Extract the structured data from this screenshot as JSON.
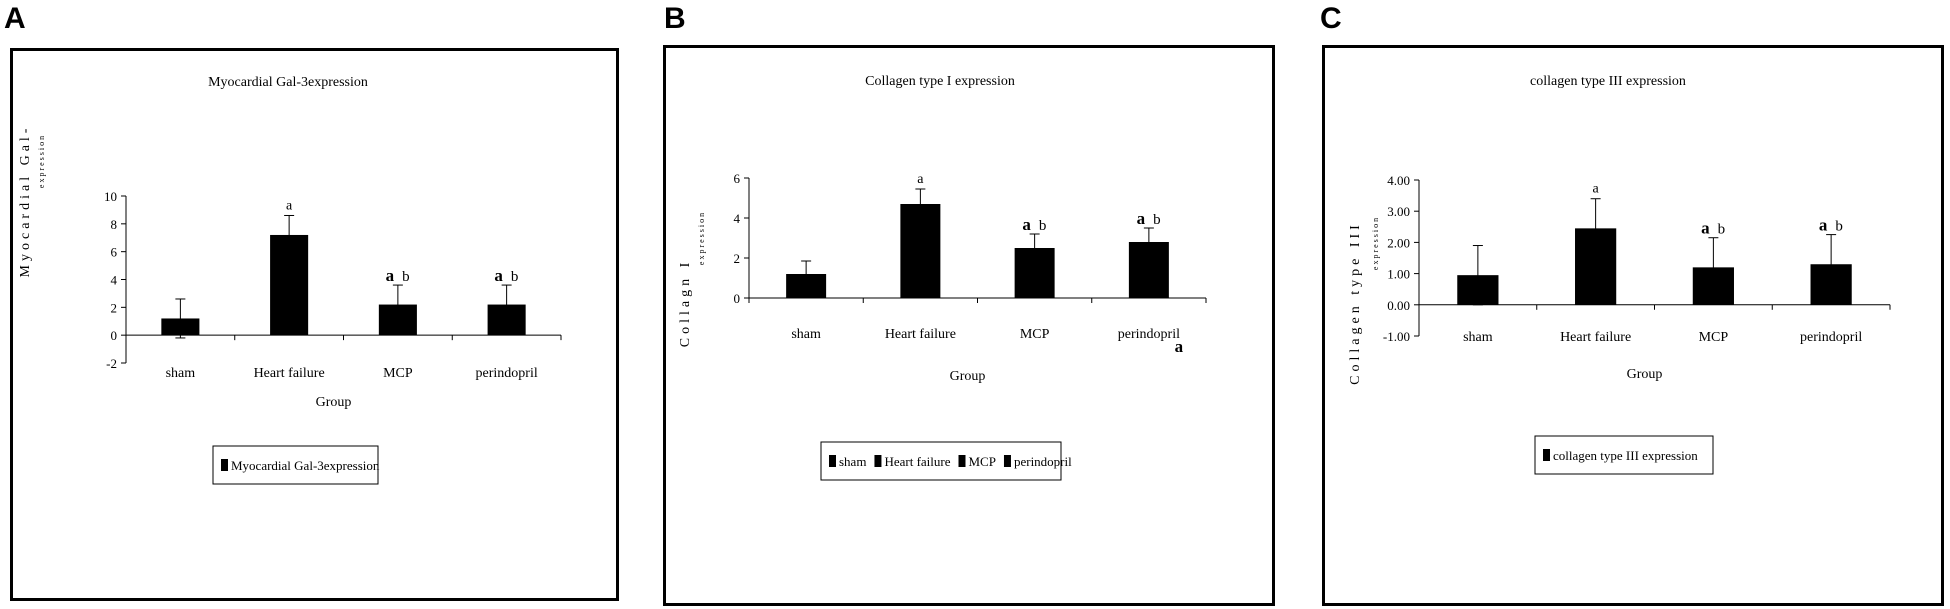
{
  "panels": [
    {
      "letter": "A",
      "chart_data": {
        "type": "bar",
        "title": "Myocardial Gal-3expression",
        "xlabel": "Group",
        "ylabel": "Myocardial Gal-",
        "ylabel_sub": "expression",
        "categories": [
          "sham",
          "Heart failure",
          "MCP",
          "perindopril"
        ],
        "values": [
          1.2,
          7.2,
          2.2,
          2.2
        ],
        "errors": [
          1.4,
          1.4,
          1.4,
          1.4
        ],
        "annotations": [
          [],
          [
            "a"
          ],
          [
            "a",
            "b"
          ],
          [
            "a",
            "b"
          ]
        ],
        "extra_marks": [],
        "ylim": [
          -2,
          10
        ],
        "yticks": [
          "10",
          "8",
          "6",
          "4",
          "2",
          "0",
          "-2"
        ],
        "legend": [
          "Myocardial Gal-3expression"
        ],
        "color": "#000000"
      }
    },
    {
      "letter": "B",
      "chart_data": {
        "type": "bar",
        "title": "Collagen type I expression",
        "xlabel": "Group",
        "ylabel": "Collagn I",
        "ylabel_sub": "expression",
        "categories": [
          "sham",
          "Heart failure",
          "MCP",
          "perindopril"
        ],
        "values": [
          1.2,
          4.7,
          2.5,
          2.8
        ],
        "errors": [
          0.65,
          0.75,
          0.7,
          0.7
        ],
        "annotations": [
          [],
          [
            "a"
          ],
          [
            "a",
            "b"
          ],
          [
            "a",
            "b"
          ]
        ],
        "extra_marks": [
          "a"
        ],
        "ylim": [
          0,
          6
        ],
        "yticks": [
          "6",
          "4",
          "2",
          "0"
        ],
        "legend": [
          "sham",
          "Heart failure",
          "MCP",
          "perindopril"
        ],
        "color": "#000000"
      }
    },
    {
      "letter": "C",
      "chart_data": {
        "type": "bar",
        "title": "collagen type III expression",
        "xlabel": "Group",
        "ylabel": "Collagen type III",
        "ylabel_sub": "expression",
        "categories": [
          "sham",
          "Heart failure",
          "MCP",
          "perindopril"
        ],
        "values": [
          0.95,
          2.45,
          1.2,
          1.3
        ],
        "errors": [
          0.95,
          0.95,
          0.95,
          0.95
        ],
        "annotations": [
          [],
          [
            "a"
          ],
          [
            "a",
            "b"
          ],
          [
            "a",
            "b"
          ]
        ],
        "extra_marks": [],
        "ylim": [
          -1,
          4
        ],
        "yticks": [
          "4.00",
          "3.00",
          "2.00",
          "1.00",
          "0.00",
          "-1.00"
        ],
        "legend": [
          "collagen type III expression"
        ],
        "color": "#000000"
      }
    }
  ]
}
